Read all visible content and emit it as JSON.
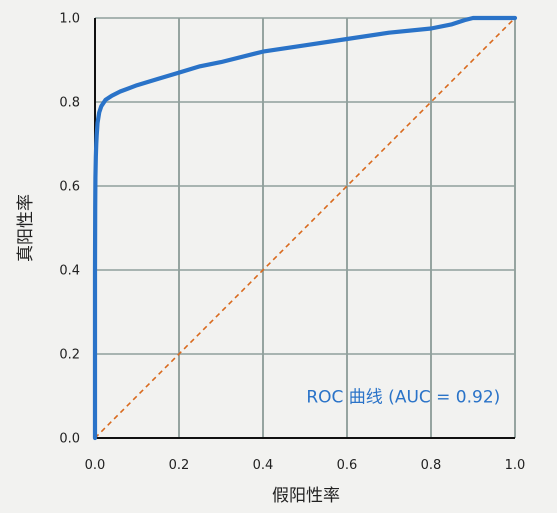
{
  "chart_data": {
    "type": "line",
    "title": "",
    "xlabel": "假阳性率",
    "ylabel": "真阳性率",
    "xlim": [
      0,
      1
    ],
    "ylim": [
      0,
      1
    ],
    "grid": true,
    "x_ticks": [
      "0.0",
      "0.2",
      "0.4",
      "0.6",
      "0.8",
      "1.0"
    ],
    "y_ticks": [
      "0.0",
      "0.2",
      "0.4",
      "0.6",
      "0.8",
      "1.0"
    ],
    "series": [
      {
        "style": "solid",
        "color": "#2a73c8",
        "x": [
          0,
          0,
          0.0005,
          0.001,
          0.002,
          0.003,
          0.004,
          0.006,
          0.01,
          0.015,
          0.025,
          0.04,
          0.06,
          0.1,
          0.15,
          0.2,
          0.25,
          0.3,
          0.4,
          0.5,
          0.6,
          0.7,
          0.8,
          0.85,
          0.88,
          0.9,
          0.95,
          1.0
        ],
        "y": [
          0,
          0.4,
          0.55,
          0.62,
          0.67,
          0.7,
          0.72,
          0.75,
          0.775,
          0.79,
          0.805,
          0.815,
          0.825,
          0.84,
          0.855,
          0.87,
          0.885,
          0.895,
          0.92,
          0.935,
          0.95,
          0.965,
          0.975,
          0.985,
          0.995,
          1.0,
          1.0,
          1.0
        ]
      },
      {
        "style": "dashed",
        "color": "#d96a1e",
        "x": [
          0,
          1
        ],
        "y": [
          0,
          1
        ]
      }
    ],
    "annotations": [
      {
        "text": "ROC 曲线 (AUC = 0.92)",
        "x": 0.965,
        "y": 0.085,
        "color": "#2a73c8"
      }
    ]
  }
}
